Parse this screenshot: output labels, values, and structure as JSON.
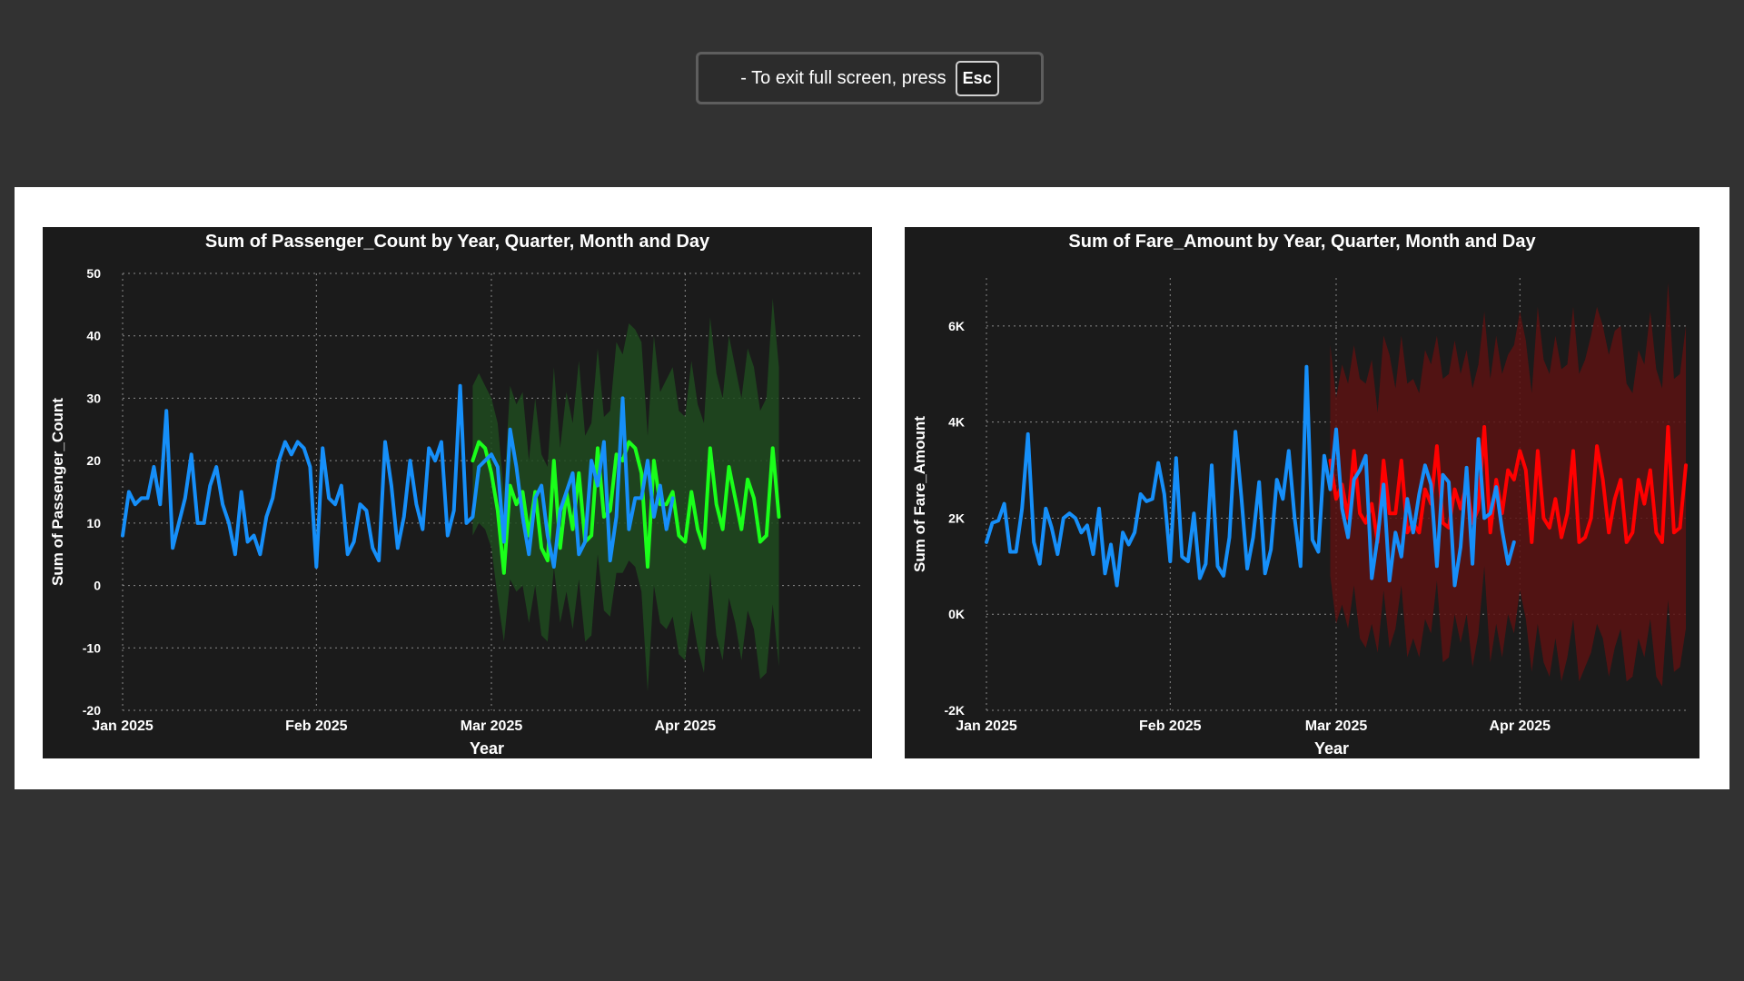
{
  "fullscreen_toast": {
    "message": "-  To exit full screen, press",
    "key": "Esc"
  },
  "colors": {
    "page_background": "#323232",
    "chart_background": "#1b1b1b",
    "actual_line": "#168ff9",
    "forecast_green": "#1aff1a",
    "forecast_green_band": "#1f4a1f",
    "forecast_red": "#ff0000",
    "forecast_red_band": "#5a1212"
  },
  "chart_data": [
    {
      "type": "line",
      "title": "Sum of Passenger_Count by Year, Quarter, Month and Day",
      "xlabel": "Year",
      "ylabel": "Sum of Passenger_Count",
      "ylim": [
        -20,
        50
      ],
      "yticks": [
        50,
        40,
        30,
        20,
        10,
        0,
        -10,
        -20
      ],
      "ytick_labels": [
        "50",
        "40",
        "30",
        "20",
        "10",
        "0",
        "-10",
        "-20"
      ],
      "xlim": [
        "2025-01-01",
        "2025-04-29"
      ],
      "xticks": [
        "2025-01-01",
        "2025-02-01",
        "2025-03-01",
        "2025-04-01"
      ],
      "xtick_labels": [
        "Jan 2025",
        "Feb 2025",
        "Mar 2025",
        "Apr 2025"
      ],
      "grid": true,
      "series": [
        {
          "role": "actual",
          "color": "#168ff9",
          "start": "2025-01-01",
          "values": [
            8,
            15,
            13,
            14,
            14,
            19,
            13,
            28,
            6,
            10,
            14,
            21,
            10,
            10,
            16,
            19,
            13,
            10,
            5,
            15,
            7,
            8,
            5,
            11,
            14,
            20,
            23,
            21,
            23,
            22,
            19,
            3,
            22,
            14,
            13,
            16,
            5,
            7,
            13,
            12,
            6,
            4,
            23,
            16,
            6,
            11,
            20,
            13,
            9,
            22,
            20,
            23,
            8,
            12,
            32,
            10,
            11,
            19,
            20,
            21,
            19,
            7,
            25,
            19,
            11,
            5,
            14,
            16,
            8,
            3,
            12,
            15,
            18,
            5,
            7,
            20,
            16,
            23,
            4,
            11,
            30,
            9,
            14,
            14,
            20,
            11,
            16,
            9,
            14
          ]
        },
        {
          "role": "forecast",
          "color": "#1aff1a",
          "start": "2025-02-26",
          "values": [
            20,
            23,
            22,
            18,
            12,
            2,
            16,
            13,
            15,
            8,
            15,
            6,
            4,
            20,
            6,
            15,
            9,
            18,
            7,
            8,
            22,
            11,
            12,
            21,
            20,
            23,
            22,
            18,
            3,
            20,
            13,
            13,
            15,
            8,
            7,
            15,
            9,
            6,
            22,
            13,
            9,
            19,
            14,
            9,
            17,
            14,
            7,
            8,
            22,
            11
          ],
          "upper": [
            32,
            34,
            32,
            30,
            26,
            15,
            32,
            29,
            31,
            20,
            30,
            21,
            19,
            35,
            22,
            31,
            26,
            36,
            24,
            26,
            38,
            27,
            28,
            39,
            37,
            42,
            41,
            39,
            24,
            40,
            31,
            33,
            35,
            28,
            27,
            36,
            29,
            26,
            43,
            34,
            30,
            40,
            35,
            30,
            38,
            35,
            28,
            30,
            46,
            35
          ],
          "lower": [
            8,
            10,
            9,
            6,
            -2,
            -9,
            1,
            -1,
            0,
            -6,
            0,
            -8,
            -9,
            3,
            -6,
            -1,
            -7,
            1,
            -9,
            -8,
            5,
            -4,
            -5,
            2,
            2,
            4,
            3,
            -1,
            -17,
            0,
            -6,
            -7,
            -5,
            -11,
            -12,
            -4,
            -10,
            -14,
            2,
            -8,
            -12,
            -2,
            -6,
            -12,
            -4,
            -7,
            -15,
            -14,
            -3,
            -13
          ]
        }
      ]
    },
    {
      "type": "line",
      "title": "Sum of Fare_Amount by Year, Quarter, Month and Day",
      "xlabel": "Year",
      "ylabel": "Sum of Fare_Amount",
      "ylim": [
        -2000,
        7000
      ],
      "yticks": [
        6000,
        4000,
        2000,
        0,
        -2000
      ],
      "ytick_labels": [
        "6K",
        "4K",
        "2K",
        "0K",
        "-2K"
      ],
      "xlim": [
        "2025-01-01",
        "2025-04-29"
      ],
      "xticks": [
        "2025-01-01",
        "2025-02-01",
        "2025-03-01",
        "2025-04-01"
      ],
      "xtick_labels": [
        "Jan 2025",
        "Feb 2025",
        "Mar 2025",
        "Apr 2025"
      ],
      "grid": true,
      "series": [
        {
          "role": "actual",
          "color": "#168ff9",
          "start": "2025-01-01",
          "values": [
            1500,
            1900,
            1950,
            2300,
            1300,
            1300,
            2200,
            3750,
            1500,
            1050,
            2200,
            1800,
            1250,
            2000,
            2100,
            2000,
            1700,
            1850,
            1250,
            2200,
            850,
            1450,
            600,
            1700,
            1450,
            1700,
            2500,
            2350,
            2400,
            3150,
            2500,
            1100,
            3250,
            1200,
            1100,
            2100,
            750,
            1050,
            3100,
            1000,
            800,
            1600,
            3800,
            2450,
            950,
            1600,
            2750,
            850,
            1350,
            2800,
            2400,
            3400,
            2000,
            1000,
            5150,
            1550,
            1300,
            3300,
            2600,
            3850,
            2200,
            1600,
            2800,
            3000,
            3300,
            750,
            1600,
            2700,
            700,
            1700,
            1200,
            2400,
            1700,
            2500,
            3100,
            2700,
            1000,
            2900,
            2750,
            600,
            1400,
            3050,
            1050,
            3650,
            2000,
            2100,
            2650,
            1750,
            1050,
            1500
          ]
        },
        {
          "role": "forecast",
          "color": "#ff0000",
          "start": "2025-02-28",
          "values": [
            3200,
            2400,
            2700,
            2000,
            3400,
            2100,
            1900,
            2300,
            1500,
            3200,
            2100,
            2100,
            3200,
            1700,
            1900,
            1700,
            2600,
            2300,
            3500,
            1900,
            1800,
            2600,
            2200,
            2700,
            1900,
            2200,
            3900,
            1700,
            2800,
            2100,
            3000,
            2800,
            3400,
            3000,
            1500,
            3400,
            2000,
            1800,
            2400,
            1600,
            2100,
            3400,
            1500,
            1600,
            2000,
            3500,
            2800,
            1700,
            2400,
            2800,
            1500,
            1700,
            2800,
            2300,
            3000,
            1700,
            1500,
            3900,
            1700,
            1800,
            3100
          ]
        }
      ],
      "band": {
        "start": "2025-02-28",
        "upper": [
          5600,
          4500,
          5200,
          4800,
          5600,
          4900,
          4800,
          5300,
          4200,
          5800,
          5400,
          4700,
          5800,
          4800,
          4900,
          4600,
          5500,
          5200,
          5800,
          4900,
          5000,
          5700,
          5000,
          5500,
          4700,
          5200,
          6300,
          4900,
          5800,
          5000,
          5400,
          5600,
          6300,
          5700,
          4600,
          6400,
          5300,
          5000,
          5800,
          5100,
          5200,
          6400,
          5000,
          5300,
          5800,
          6400,
          6000,
          5400,
          5900,
          6000,
          4800,
          4600,
          5500,
          5200,
          6300,
          5100,
          4700,
          6900,
          4900,
          5000,
          6000
        ],
        "lower": [
          800,
          -200,
          200,
          -300,
          600,
          -500,
          -700,
          -200,
          -800,
          500,
          -700,
          -300,
          600,
          -900,
          -500,
          -900,
          -100,
          -400,
          700,
          -1000,
          -900,
          0,
          -600,
          0,
          -1100,
          -400,
          1000,
          -1000,
          -200,
          -900,
          0,
          -400,
          500,
          -100,
          -1200,
          -200,
          -1000,
          -1300,
          -500,
          -1400,
          -900,
          -100,
          -1400,
          -1100,
          -800,
          -200,
          -500,
          -1300,
          -700,
          -300,
          -1400,
          -1300,
          -500,
          -900,
          -100,
          -1300,
          -1500,
          300,
          -1200,
          -1100,
          -300
        ]
      }
    }
  ]
}
